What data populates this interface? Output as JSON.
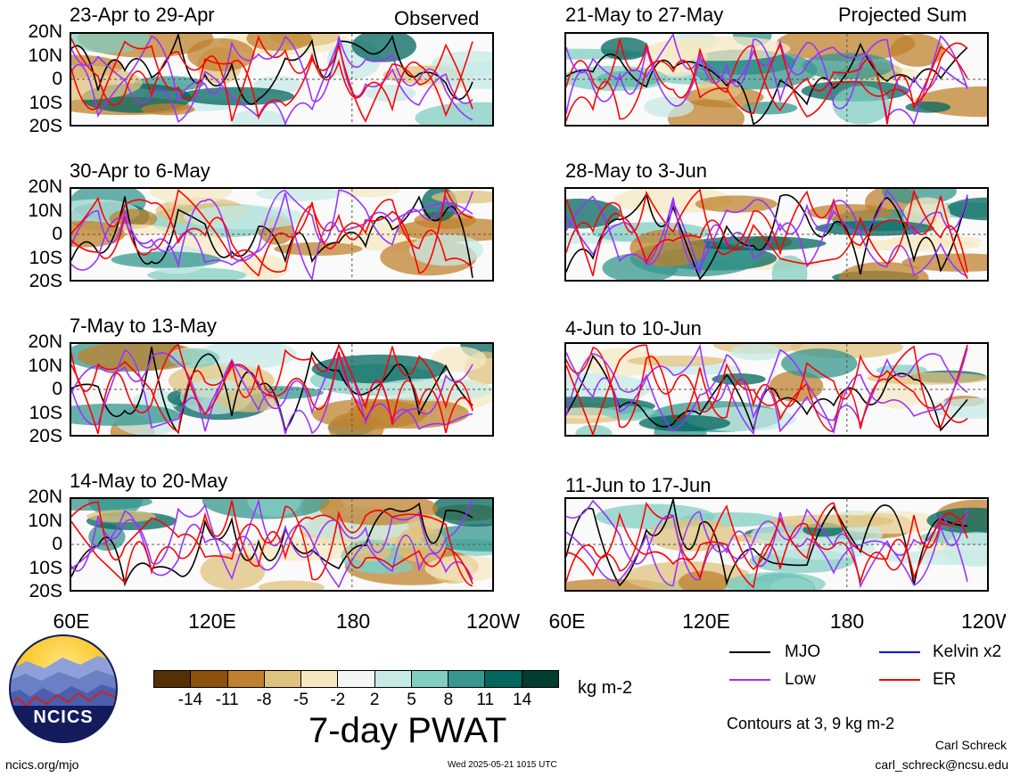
{
  "header": {
    "observed_label": "Observed",
    "projected_label": "Projected Sum"
  },
  "panels_left": [
    {
      "title": "23-Apr to 29-Apr"
    },
    {
      "title": "30-Apr to 6-May"
    },
    {
      "title": "7-May to 13-May"
    },
    {
      "title": "14-May to 20-May"
    }
  ],
  "panels_right": [
    {
      "title": "21-May to 27-May"
    },
    {
      "title": "28-May to 3-Jun"
    },
    {
      "title": "4-Jun to 10-Jun"
    },
    {
      "title": "11-Jun to 17-Jun"
    }
  ],
  "lat_labels": [
    "20N",
    "10N",
    "0",
    "10S",
    "20S"
  ],
  "lon_labels": [
    "60E",
    "120E",
    "180",
    "120W"
  ],
  "legend": {
    "items": [
      {
        "label": "MJO",
        "color": "#000000"
      },
      {
        "label": "Kelvin x2",
        "color": "#0000ff"
      },
      {
        "label": "Low",
        "color": "#9933ff"
      },
      {
        "label": "ER",
        "color": "#ff0000"
      }
    ],
    "contours_note": "Contours at 3, 9 kg m-2"
  },
  "colorbar": {
    "colors": [
      "#543005",
      "#8c510a",
      "#bf812d",
      "#dfc27d",
      "#f6e8c3",
      "#f5f5f5",
      "#c7eae5",
      "#80cdc1",
      "#35978f",
      "#01665e",
      "#003c30"
    ],
    "ticks": [
      "-14",
      "-11",
      "-8",
      "-5",
      "-2",
      "2",
      "5",
      "8",
      "11",
      "14"
    ],
    "unit": "kg m-2",
    "title": "7-day PWAT"
  },
  "logo": {
    "text": "NCICS"
  },
  "footer": {
    "url": "ncics.org/mjo",
    "timestamp": "Wed 2025-05-21 1015 UTC",
    "author": "Carl Schreck",
    "email": "carl_schreck@ncsu.edu"
  }
}
